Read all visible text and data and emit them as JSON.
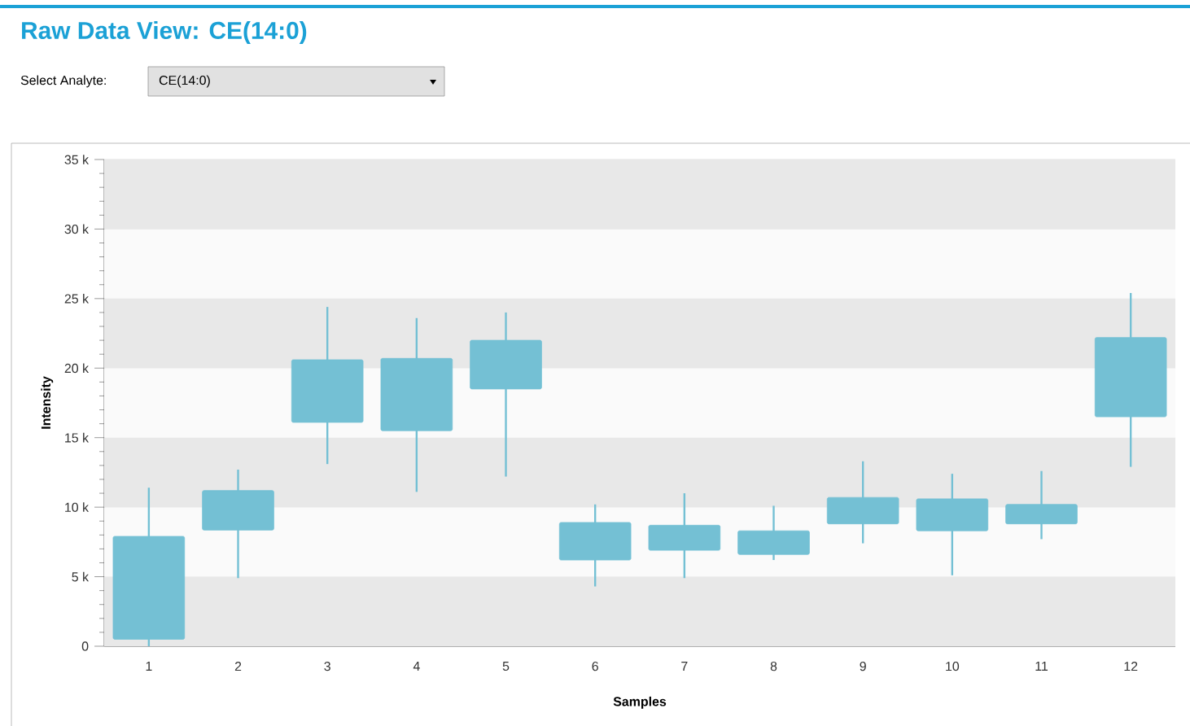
{
  "chart_data": {
    "type": "candlestick",
    "title": "Raw Data View:  CE(14:0)",
    "annotations": [
      "Select Analyte:",
      "CE(14:0)"
    ],
    "xlabel": "Samples",
    "ylabel": "Intensity",
    "categories": [
      "1",
      "2",
      "3",
      "4",
      "5",
      "6",
      "7",
      "8",
      "9",
      "10",
      "11",
      "12"
    ],
    "ohlc": [
      [
        500,
        11400,
        0,
        7900
      ],
      [
        8350,
        12700,
        4900,
        11200
      ],
      [
        16100,
        24400,
        13100,
        20600
      ],
      [
        15500,
        23600,
        11100,
        20700
      ],
      [
        18500,
        24000,
        12200,
        22000
      ],
      [
        6200,
        10200,
        4300,
        8900
      ],
      [
        6900,
        11000,
        4900,
        8700
      ],
      [
        6600,
        10100,
        6200,
        8300
      ],
      [
        8800,
        13300,
        7400,
        10700
      ],
      [
        8300,
        12400,
        5100,
        10600
      ],
      [
        8800,
        12600,
        7700,
        10200
      ],
      [
        16500,
        25400,
        12900,
        22200
      ]
    ],
    "color": "#74c0d4",
    "ylim": [
      0,
      35000
    ],
    "yticks": [
      0,
      {
        "value": 5000,
        "label": "5 k"
      },
      {
        "value": 10000,
        "label": "10 k"
      },
      {
        "value": 15000,
        "label": "15 k"
      },
      {
        "value": 20000,
        "label": "20 k"
      },
      {
        "value": 25000,
        "label": "25 k"
      },
      {
        "value": 30000,
        "label": "30 k"
      },
      {
        "value": 35000,
        "label": "35 k"
      }
    ],
    "grid": "y"
  }
}
